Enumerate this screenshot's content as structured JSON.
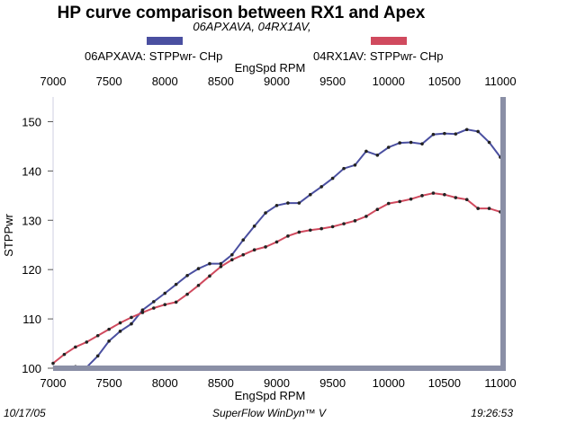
{
  "chart_data": {
    "type": "line",
    "title": "HP curve comparison between RX1 and Apex",
    "subtitle": "06APXAVA, 04RX1AV,",
    "xlabel": "EngSpd  RPM",
    "ylabel": "STPPwr",
    "xlim": [
      7000,
      11000
    ],
    "ylim": [
      100,
      155
    ],
    "x_ticks": [
      "7000",
      "7500",
      "8000",
      "8500",
      "9000",
      "9500",
      "10000",
      "10500",
      "11000"
    ],
    "y_ticks": [
      "100",
      "110",
      "120",
      "130",
      "140",
      "150"
    ],
    "series": [
      {
        "name": "06APXAVA: STPPwr- CHp",
        "color": "#4a4fa0",
        "x": [
          7200,
          7300,
          7400,
          7500,
          7600,
          7700,
          7800,
          7900,
          8000,
          8100,
          8200,
          8300,
          8400,
          8500,
          8600,
          8700,
          8800,
          8900,
          9000,
          9100,
          9200,
          9300,
          9400,
          9500,
          9600,
          9700,
          9800,
          9900,
          10000,
          10100,
          10200,
          10300,
          10400,
          10500,
          10600,
          10700,
          10800,
          10900,
          11000
        ],
        "values": [
          100.3,
          100.2,
          102.5,
          105.5,
          107.5,
          109.0,
          111.8,
          113.5,
          115.2,
          117.0,
          118.8,
          120.2,
          121.2,
          121.2,
          123.0,
          126.0,
          128.8,
          131.5,
          133.0,
          133.5,
          133.5,
          135.2,
          136.8,
          138.5,
          140.5,
          141.2,
          144.0,
          143.2,
          144.8,
          145.7,
          145.8,
          145.5,
          147.4,
          147.6,
          147.5,
          148.4,
          148.0,
          145.8,
          142.8
        ]
      },
      {
        "name": "04RX1AV: STPPwr- CHp",
        "color": "#d04a5e",
        "x": [
          7000,
          7100,
          7200,
          7300,
          7400,
          7500,
          7600,
          7700,
          7800,
          7900,
          8000,
          8100,
          8200,
          8300,
          8400,
          8500,
          8600,
          8700,
          8800,
          8900,
          9000,
          9100,
          9200,
          9300,
          9400,
          9500,
          9600,
          9700,
          9800,
          9900,
          10000,
          10100,
          10200,
          10300,
          10400,
          10500,
          10600,
          10700,
          10800,
          10900,
          11000
        ],
        "values": [
          101.0,
          102.8,
          104.3,
          105.3,
          106.6,
          107.9,
          109.2,
          110.3,
          111.3,
          112.2,
          112.9,
          113.4,
          115.0,
          116.8,
          118.7,
          120.6,
          122.0,
          123.0,
          124.0,
          124.6,
          125.6,
          126.8,
          127.6,
          128.0,
          128.3,
          128.7,
          129.3,
          129.9,
          130.8,
          132.2,
          133.4,
          133.8,
          134.3,
          135.0,
          135.5,
          135.2,
          134.6,
          134.2,
          132.4,
          132.4,
          131.7
        ]
      }
    ],
    "legend_position": "top"
  },
  "footer": {
    "date": "10/17/05",
    "software": "SuperFlow WinDyn™ V",
    "time": "19:26:53"
  }
}
